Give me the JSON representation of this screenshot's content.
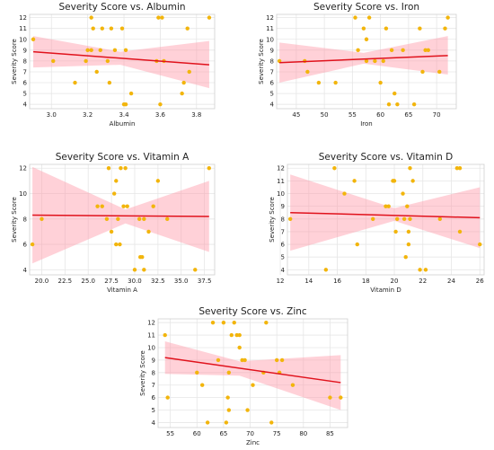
{
  "chart_data": [
    {
      "type": "scatter",
      "title": "Severity Score vs. Albumin",
      "xlabel": "Albumin",
      "ylabel": "Severity Score",
      "xlim": [
        2.88,
        3.9
      ],
      "ylim": [
        3.6,
        12.3
      ],
      "xticks": [
        "3.0",
        "3.2",
        "3.4",
        "3.6",
        "3.8"
      ],
      "yticks": [
        "4",
        "5",
        "6",
        "7",
        "8",
        "9",
        "10",
        "11",
        "12"
      ],
      "points": [
        {
          "x": 2.9,
          "y": 10
        },
        {
          "x": 3.01,
          "y": 8
        },
        {
          "x": 3.13,
          "y": 6
        },
        {
          "x": 3.19,
          "y": 8
        },
        {
          "x": 3.2,
          "y": 9
        },
        {
          "x": 3.22,
          "y": 9
        },
        {
          "x": 3.22,
          "y": 12
        },
        {
          "x": 3.23,
          "y": 11
        },
        {
          "x": 3.25,
          "y": 7
        },
        {
          "x": 3.27,
          "y": 9
        },
        {
          "x": 3.28,
          "y": 11
        },
        {
          "x": 3.31,
          "y": 8
        },
        {
          "x": 3.32,
          "y": 6
        },
        {
          "x": 3.33,
          "y": 11
        },
        {
          "x": 3.35,
          "y": 9
        },
        {
          "x": 3.39,
          "y": 11
        },
        {
          "x": 3.4,
          "y": 4
        },
        {
          "x": 3.41,
          "y": 4
        },
        {
          "x": 3.41,
          "y": 9
        },
        {
          "x": 3.44,
          "y": 5
        },
        {
          "x": 3.58,
          "y": 8
        },
        {
          "x": 3.59,
          "y": 12
        },
        {
          "x": 3.6,
          "y": 4
        },
        {
          "x": 3.61,
          "y": 12
        },
        {
          "x": 3.62,
          "y": 8
        },
        {
          "x": 3.72,
          "y": 5
        },
        {
          "x": 3.73,
          "y": 6
        },
        {
          "x": 3.75,
          "y": 11
        },
        {
          "x": 3.76,
          "y": 7
        },
        {
          "x": 3.87,
          "y": 12
        }
      ],
      "regression": {
        "x": [
          2.9,
          3.87
        ],
        "y": [
          8.85,
          7.65
        ]
      },
      "ci": {
        "x": [
          2.9,
          3.38,
          3.87
        ],
        "upper": [
          10.3,
          8.85,
          9.85
        ],
        "lower": [
          7.4,
          7.65,
          5.5
        ]
      }
    },
    {
      "type": "scatter",
      "title": "Severity Score vs. Iron",
      "xlabel": "Iron",
      "ylabel": "Severity Score",
      "xlim": [
        41.5,
        73.5
      ],
      "ylim": [
        3.6,
        12.3
      ],
      "xticks": [
        "45",
        "50",
        "55",
        "60",
        "65",
        "70"
      ],
      "yticks": [
        "4",
        "5",
        "6",
        "7",
        "8",
        "9",
        "10",
        "11",
        "12"
      ],
      "points": [
        {
          "x": 42,
          "y": 8
        },
        {
          "x": 46.5,
          "y": 8
        },
        {
          "x": 47,
          "y": 7
        },
        {
          "x": 49,
          "y": 6
        },
        {
          "x": 52,
          "y": 6
        },
        {
          "x": 55.5,
          "y": 12
        },
        {
          "x": 56,
          "y": 9
        },
        {
          "x": 57,
          "y": 11
        },
        {
          "x": 57.5,
          "y": 10
        },
        {
          "x": 57.5,
          "y": 8
        },
        {
          "x": 58,
          "y": 12
        },
        {
          "x": 59,
          "y": 8
        },
        {
          "x": 60,
          "y": 6
        },
        {
          "x": 60.5,
          "y": 8
        },
        {
          "x": 61,
          "y": 11
        },
        {
          "x": 61.5,
          "y": 4
        },
        {
          "x": 62,
          "y": 9
        },
        {
          "x": 62.5,
          "y": 5
        },
        {
          "x": 63,
          "y": 4
        },
        {
          "x": 64,
          "y": 9
        },
        {
          "x": 66,
          "y": 4
        },
        {
          "x": 67,
          "y": 11
        },
        {
          "x": 67.5,
          "y": 7
        },
        {
          "x": 68,
          "y": 9
        },
        {
          "x": 68.5,
          "y": 9
        },
        {
          "x": 70.5,
          "y": 7
        },
        {
          "x": 71.5,
          "y": 11
        },
        {
          "x": 72,
          "y": 12
        }
      ],
      "regression": {
        "x": [
          42,
          72
        ],
        "y": [
          7.85,
          8.5
        ]
      },
      "ci": {
        "x": [
          42,
          57,
          72
        ],
        "upper": [
          9.7,
          8.75,
          10.3
        ],
        "lower": [
          6.0,
          7.75,
          6.75
        ]
      }
    },
    {
      "type": "scatter",
      "title": "Severity Score vs. Vitamin A",
      "xlabel": "Vitamin A",
      "ylabel": "Severity Score",
      "xlim": [
        18.7,
        38.6
      ],
      "ylim": [
        3.6,
        12.3
      ],
      "xticks": [
        "20.0",
        "22.5",
        "25.0",
        "27.5",
        "30.0",
        "32.5",
        "35.0",
        "37.5"
      ],
      "yticks": [
        "4",
        "6",
        "8",
        "10",
        "12"
      ],
      "points": [
        {
          "x": 19,
          "y": 6
        },
        {
          "x": 20,
          "y": 8
        },
        {
          "x": 26,
          "y": 9
        },
        {
          "x": 26.5,
          "y": 9
        },
        {
          "x": 27,
          "y": 8
        },
        {
          "x": 27.2,
          "y": 12
        },
        {
          "x": 27.5,
          "y": 7
        },
        {
          "x": 27.8,
          "y": 10
        },
        {
          "x": 28,
          "y": 6
        },
        {
          "x": 28,
          "y": 11
        },
        {
          "x": 28.2,
          "y": 8
        },
        {
          "x": 28.4,
          "y": 6
        },
        {
          "x": 28.5,
          "y": 12
        },
        {
          "x": 28.8,
          "y": 9
        },
        {
          "x": 29,
          "y": 12
        },
        {
          "x": 29.2,
          "y": 9
        },
        {
          "x": 30,
          "y": 4
        },
        {
          "x": 30.5,
          "y": 8
        },
        {
          "x": 30.6,
          "y": 5
        },
        {
          "x": 30.8,
          "y": 5
        },
        {
          "x": 31,
          "y": 8
        },
        {
          "x": 31,
          "y": 4
        },
        {
          "x": 31.5,
          "y": 7
        },
        {
          "x": 32,
          "y": 9
        },
        {
          "x": 32.5,
          "y": 11
        },
        {
          "x": 33.5,
          "y": 8
        },
        {
          "x": 36.5,
          "y": 4
        },
        {
          "x": 38,
          "y": 12
        }
      ],
      "regression": {
        "x": [
          19,
          38
        ],
        "y": [
          8.3,
          8.2
        ]
      },
      "ci": {
        "x": [
          19,
          29,
          38
        ],
        "upper": [
          12.1,
          8.75,
          11.0
        ],
        "lower": [
          4.5,
          7.65,
          5.4
        ]
      }
    },
    {
      "type": "scatter",
      "title": "Severity Score vs. Vitamin D",
      "xlabel": "Vitamin D",
      "ylabel": "Severity Score",
      "xlim": [
        12.5,
        26.3
      ],
      "ylim": [
        3.6,
        12.3
      ],
      "xticks": [
        "12",
        "14",
        "16",
        "18",
        "20",
        "22",
        "24",
        "26"
      ],
      "yticks": [
        "4",
        "5",
        "6",
        "7",
        "8",
        "9",
        "10",
        "11",
        "12"
      ],
      "points": [
        {
          "x": 12.7,
          "y": 8
        },
        {
          "x": 15.2,
          "y": 4
        },
        {
          "x": 15.8,
          "y": 12
        },
        {
          "x": 16.5,
          "y": 10
        },
        {
          "x": 17.2,
          "y": 11
        },
        {
          "x": 17.4,
          "y": 6
        },
        {
          "x": 18.5,
          "y": 8
        },
        {
          "x": 19.4,
          "y": 9
        },
        {
          "x": 19.6,
          "y": 9
        },
        {
          "x": 19.9,
          "y": 11
        },
        {
          "x": 20,
          "y": 11
        },
        {
          "x": 20.1,
          "y": 7
        },
        {
          "x": 20.2,
          "y": 8
        },
        {
          "x": 20.6,
          "y": 10
        },
        {
          "x": 20.7,
          "y": 8
        },
        {
          "x": 20.8,
          "y": 5
        },
        {
          "x": 20.9,
          "y": 9
        },
        {
          "x": 21,
          "y": 6
        },
        {
          "x": 21,
          "y": 7
        },
        {
          "x": 21.1,
          "y": 12
        },
        {
          "x": 21.1,
          "y": 8
        },
        {
          "x": 21.3,
          "y": 11
        },
        {
          "x": 21.8,
          "y": 4
        },
        {
          "x": 22.2,
          "y": 4
        },
        {
          "x": 23.2,
          "y": 8
        },
        {
          "x": 24.4,
          "y": 12
        },
        {
          "x": 24.6,
          "y": 12
        },
        {
          "x": 24.6,
          "y": 7
        },
        {
          "x": 26,
          "y": 6
        }
      ],
      "regression": {
        "x": [
          12.7,
          26
        ],
        "y": [
          8.5,
          8.1
        ]
      },
      "ci": {
        "x": [
          12.7,
          20,
          26
        ],
        "upper": [
          11.5,
          8.85,
          10.5
        ],
        "lower": [
          5.5,
          7.85,
          5.7
        ]
      }
    },
    {
      "type": "scatter",
      "title": "Severity Score vs. Zinc",
      "xlabel": "Zinc",
      "ylabel": "Severity Score",
      "xlim": [
        52.7,
        88.3
      ],
      "ylim": [
        3.6,
        12.3
      ],
      "xticks": [
        "55",
        "60",
        "65",
        "70",
        "75",
        "80",
        "85"
      ],
      "yticks": [
        "4",
        "5",
        "6",
        "7",
        "8",
        "9",
        "10",
        "11",
        "12"
      ],
      "points": [
        {
          "x": 54,
          "y": 11
        },
        {
          "x": 54.5,
          "y": 6
        },
        {
          "x": 60,
          "y": 8
        },
        {
          "x": 61,
          "y": 7
        },
        {
          "x": 62,
          "y": 4
        },
        {
          "x": 63,
          "y": 12
        },
        {
          "x": 64,
          "y": 9
        },
        {
          "x": 65,
          "y": 12
        },
        {
          "x": 65.5,
          "y": 4
        },
        {
          "x": 65.8,
          "y": 6
        },
        {
          "x": 66,
          "y": 5
        },
        {
          "x": 66,
          "y": 8
        },
        {
          "x": 66.5,
          "y": 11
        },
        {
          "x": 67,
          "y": 12
        },
        {
          "x": 67.5,
          "y": 11
        },
        {
          "x": 68,
          "y": 10
        },
        {
          "x": 68,
          "y": 11
        },
        {
          "x": 68.5,
          "y": 9
        },
        {
          "x": 69,
          "y": 9
        },
        {
          "x": 69.5,
          "y": 5
        },
        {
          "x": 70.5,
          "y": 7
        },
        {
          "x": 72.5,
          "y": 8
        },
        {
          "x": 73,
          "y": 12
        },
        {
          "x": 74,
          "y": 4
        },
        {
          "x": 75,
          "y": 9
        },
        {
          "x": 75.5,
          "y": 8
        },
        {
          "x": 76,
          "y": 9
        },
        {
          "x": 78,
          "y": 7
        },
        {
          "x": 85,
          "y": 6
        },
        {
          "x": 87,
          "y": 6
        }
      ],
      "regression": {
        "x": [
          54,
          87
        ],
        "y": [
          9.2,
          7.2
        ]
      },
      "ci": {
        "x": [
          54,
          68,
          87
        ],
        "upper": [
          10.5,
          8.9,
          9.4
        ],
        "lower": [
          7.9,
          7.75,
          5.0
        ]
      }
    }
  ]
}
